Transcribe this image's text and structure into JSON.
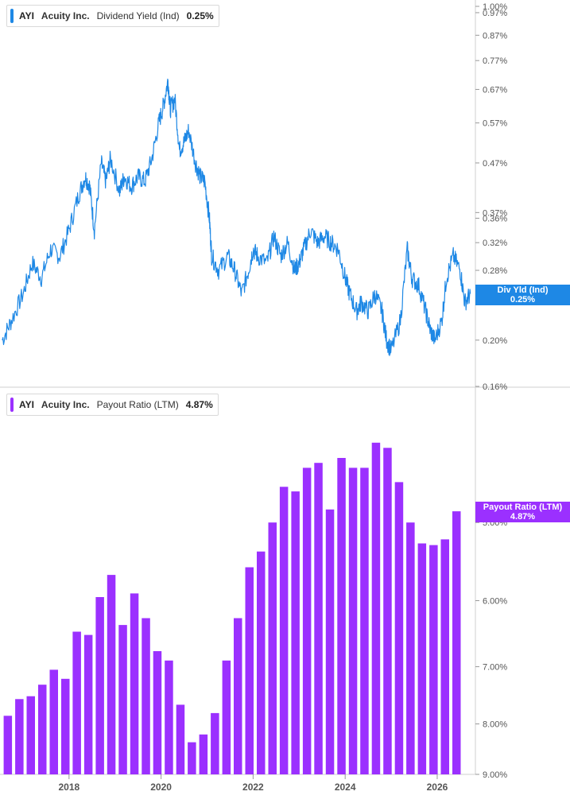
{
  "colors": {
    "yield_line": "#1e88e5",
    "payout_bar": "#9b30ff",
    "axis": "#cfcfcf",
    "tick_text": "#555555"
  },
  "top_panel": {
    "legend": {
      "ticker": "AYI",
      "company": "Acuity Inc.",
      "metric": "Dividend Yield (Ind)",
      "value": "0.25%"
    },
    "tag": {
      "line1": "Div Yld (Ind)",
      "line2": "0.25%"
    }
  },
  "bottom_panel": {
    "legend": {
      "ticker": "AYI",
      "company": "Acuity Inc.",
      "metric": "Payout Ratio (LTM)",
      "value": "4.87%"
    },
    "tag": {
      "line1": "Payout Ratio (LTM)",
      "line2": "4.87%"
    }
  },
  "chart_data": [
    {
      "type": "line",
      "scale": "log",
      "series": [
        {
          "name": "Dividend Yield (Ind)"
        }
      ],
      "ylim": [
        0.16,
        1.0
      ],
      "y_ticks": [
        "1.00%",
        "0.97%",
        "0.87%",
        "0.77%",
        "0.67%",
        "0.57%",
        "0.47%",
        "0.37%",
        "0.36%",
        "0.32%",
        "0.28%",
        "0.24%",
        "0.20%",
        "0.16%"
      ],
      "y_tick_values": [
        1.0,
        0.97,
        0.87,
        0.77,
        0.67,
        0.57,
        0.47,
        0.37,
        0.36,
        0.32,
        0.28,
        0.24,
        0.2,
        0.16
      ],
      "x": [
        2016.55,
        2016.75,
        2017.0,
        2017.2,
        2017.4,
        2017.6,
        2017.8,
        2018.0,
        2018.2,
        2018.35,
        2018.45,
        2018.55,
        2018.7,
        2018.8,
        2018.9,
        2019.1,
        2019.2,
        2019.35,
        2019.5,
        2019.65,
        2019.8,
        2019.95,
        2020.05,
        2020.15,
        2020.2,
        2020.3,
        2020.4,
        2020.5,
        2020.6,
        2020.75,
        2020.85,
        2020.95,
        2021.05,
        2021.1,
        2021.25,
        2021.45,
        2021.6,
        2021.75,
        2021.9,
        2022.0,
        2022.1,
        2022.3,
        2022.45,
        2022.6,
        2022.75,
        2022.9,
        2023.0,
        2023.1,
        2023.25,
        2023.4,
        2023.55,
        2023.7,
        2023.85,
        2024.0,
        2024.1,
        2024.25,
        2024.35,
        2024.5,
        2024.65,
        2024.8,
        2024.9,
        2025.0,
        2025.2,
        2025.35,
        2025.45,
        2025.6,
        2025.75,
        2025.85,
        2025.95,
        2026.1,
        2026.2,
        2026.35,
        2026.5,
        2026.6,
        2026.72
      ],
      "y": [
        0.2,
        0.22,
        0.25,
        0.29,
        0.27,
        0.31,
        0.3,
        0.34,
        0.4,
        0.44,
        0.42,
        0.34,
        0.47,
        0.43,
        0.48,
        0.41,
        0.44,
        0.42,
        0.44,
        0.43,
        0.48,
        0.57,
        0.62,
        0.7,
        0.61,
        0.64,
        0.5,
        0.52,
        0.55,
        0.47,
        0.44,
        0.43,
        0.36,
        0.3,
        0.28,
        0.3,
        0.28,
        0.25,
        0.28,
        0.31,
        0.3,
        0.29,
        0.33,
        0.3,
        0.32,
        0.28,
        0.29,
        0.31,
        0.34,
        0.32,
        0.33,
        0.32,
        0.31,
        0.27,
        0.25,
        0.23,
        0.24,
        0.23,
        0.25,
        0.23,
        0.2,
        0.19,
        0.22,
        0.31,
        0.27,
        0.26,
        0.23,
        0.21,
        0.2,
        0.22,
        0.27,
        0.3,
        0.28,
        0.24,
        0.25
      ]
    },
    {
      "type": "bar",
      "scale": "log",
      "series": [
        {
          "name": "Payout Ratio (LTM)"
        }
      ],
      "ylim": [
        4.0,
        10.2
      ],
      "y_ticks": [
        "9.00%",
        "8.00%",
        "7.00%",
        "6.00%",
        "5.00%"
      ],
      "y_tick_values": [
        9.0,
        8.0,
        7.0,
        6.0,
        5.0
      ],
      "x_ticks": [
        "2018",
        "2020",
        "2022",
        "2024",
        "2026"
      ],
      "x_tick_values": [
        2018.0,
        2020.0,
        2022.0,
        2024.0,
        2026.0
      ],
      "x": [
        2016.67,
        2016.92,
        2017.17,
        2017.42,
        2017.67,
        2017.92,
        2018.17,
        2018.42,
        2018.67,
        2018.92,
        2019.17,
        2019.42,
        2019.67,
        2019.92,
        2020.17,
        2020.42,
        2020.67,
        2020.92,
        2021.17,
        2021.42,
        2021.67,
        2021.92,
        2022.17,
        2022.42,
        2022.67,
        2022.92,
        2023.17,
        2023.42,
        2023.67,
        2023.92,
        2024.17,
        2024.42,
        2024.67,
        2024.92,
        2025.17,
        2025.42,
        2025.67,
        2025.92,
        2026.17,
        2026.42
      ],
      "values": [
        7.85,
        7.55,
        7.5,
        7.3,
        7.05,
        7.2,
        6.45,
        6.5,
        5.95,
        5.65,
        6.35,
        5.9,
        6.25,
        6.75,
        6.9,
        7.65,
        8.35,
        8.2,
        7.8,
        6.9,
        6.25,
        5.55,
        5.35,
        5.0,
        4.6,
        4.65,
        4.4,
        4.35,
        4.85,
        4.3,
        4.4,
        4.4,
        4.15,
        4.2,
        4.55,
        5.0,
        5.25,
        5.27,
        5.2,
        4.87
      ]
    }
  ]
}
